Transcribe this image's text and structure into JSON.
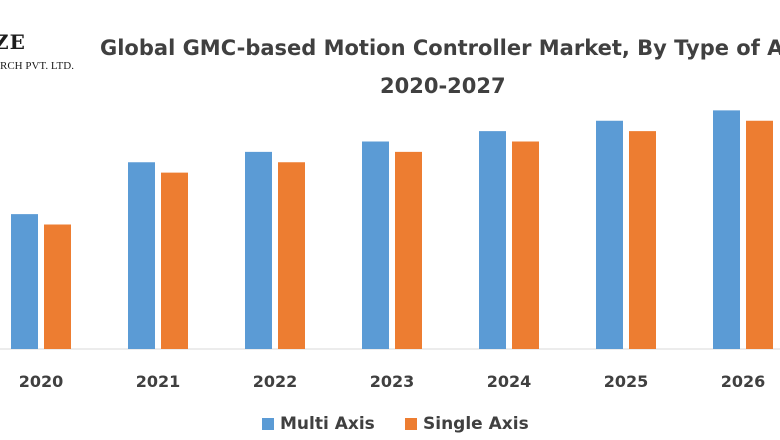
{
  "logo": {
    "text_top": "ZE",
    "text_bottom": "RCH PVT. LTD."
  },
  "chart_data": {
    "type": "bar",
    "title": "Global GMC-based Motion Controller Market, By Type of A",
    "subtitle": "2020-2027",
    "categories": [
      "2020",
      "2021",
      "2022",
      "2023",
      "2024",
      "2025",
      "2026"
    ],
    "series": [
      {
        "name": "Multi Axis",
        "color": "#5b9bd5",
        "values": [
          13.0,
          18.0,
          19.0,
          20.0,
          21.0,
          22.0,
          23.0
        ]
      },
      {
        "name": "Single Axis",
        "color": "#ed7d31",
        "values": [
          12.0,
          17.0,
          18.0,
          19.0,
          20.0,
          21.0,
          22.0
        ]
      }
    ],
    "ylim": [
      0,
      24
    ],
    "xlabel": "",
    "ylabel": "",
    "grid": false,
    "legend_position": "bottom"
  }
}
